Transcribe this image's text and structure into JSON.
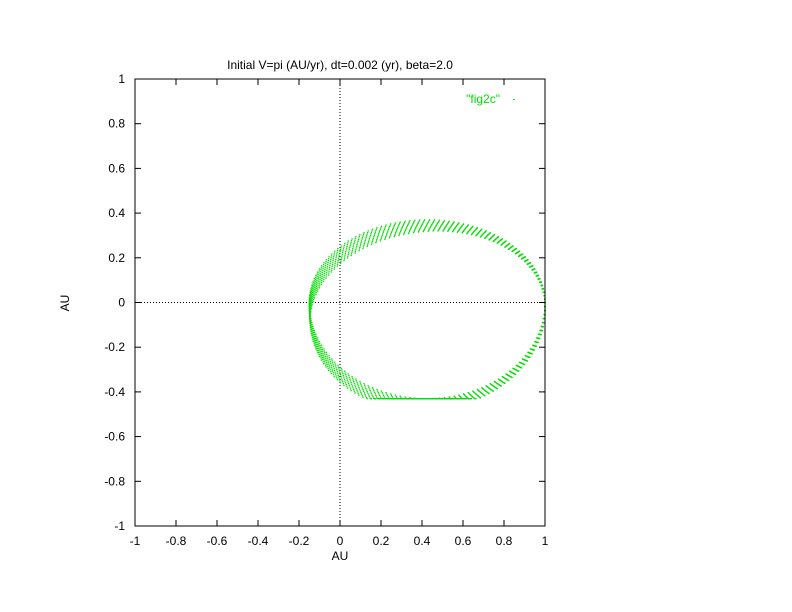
{
  "chart_data": {
    "type": "scatter",
    "title": "Initial V=pi (AU/yr), dt=0.002 (yr), beta=2.0",
    "xlabel": "AU",
    "ylabel": "AU",
    "xlim": [
      -1,
      1
    ],
    "ylim": [
      -1,
      1
    ],
    "x_ticks": [
      "-1",
      "-0.8",
      "-0.6",
      "-0.4",
      "-0.2",
      "0",
      "0.2",
      "0.4",
      "0.6",
      "0.8",
      "1"
    ],
    "y_ticks": [
      "1",
      "0.8",
      "0.6",
      "0.4",
      "0.2",
      "0",
      "-0.2",
      "-0.4",
      "-0.6",
      "-0.8",
      "-1"
    ],
    "grid": false,
    "zero_axes": true,
    "legend_position": "top-right",
    "series": [
      {
        "name": "\"fig2c\"",
        "color": "#00dd00",
        "marker": "dot",
        "shape": "precessing ellipse traced as dots",
        "trajectory": {
          "x_min": -0.15,
          "x_max": 1.0,
          "y_min": -0.43,
          "y_max": 0.37,
          "perihelion_x": 1.0,
          "aphelion_x": -0.15
        }
      }
    ]
  }
}
